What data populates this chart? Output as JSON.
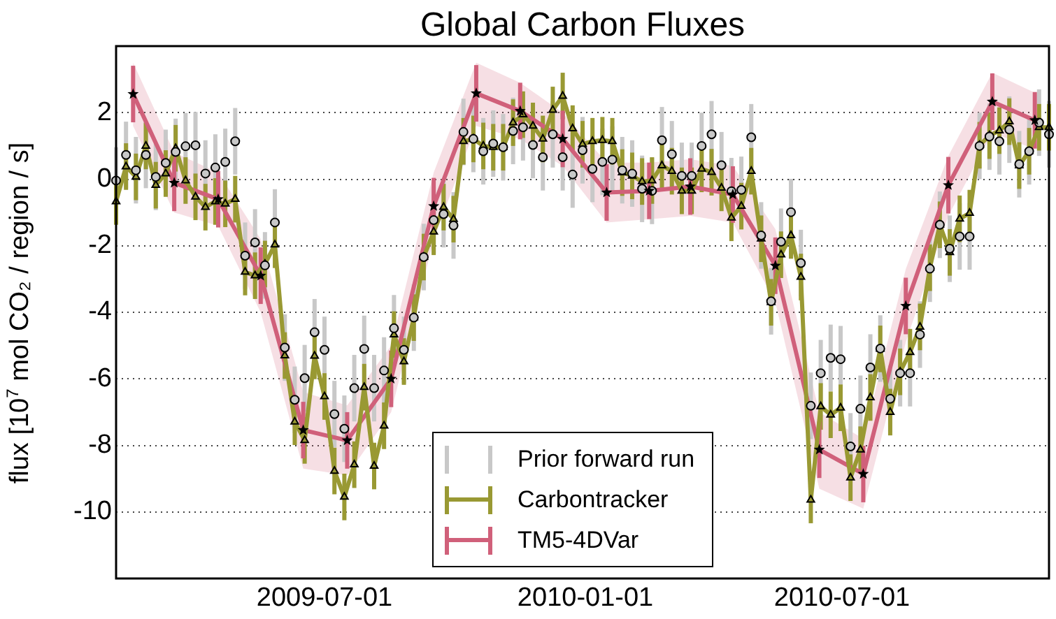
{
  "chart_data": {
    "type": "line",
    "title": "Global Carbon Fluxes",
    "ylabel": "flux [10$^{7}$ mol CO₂ / region / s]",
    "x": [
      "2009-02-04",
      "2009-02-11",
      "2009-02-18",
      "2009-02-25",
      "2009-03-04",
      "2009-03-11",
      "2009-03-18",
      "2009-03-25",
      "2009-04-01",
      "2009-04-08",
      "2009-04-15",
      "2009-04-22",
      "2009-04-29",
      "2009-05-06",
      "2009-05-13",
      "2009-05-20",
      "2009-05-27",
      "2009-06-03",
      "2009-06-10",
      "2009-06-17",
      "2009-06-24",
      "2009-07-01",
      "2009-07-08",
      "2009-07-15",
      "2009-07-22",
      "2009-07-29",
      "2009-08-05",
      "2009-08-12",
      "2009-08-19",
      "2009-08-26",
      "2009-09-02",
      "2009-09-09",
      "2009-09-16",
      "2009-09-23",
      "2009-09-30",
      "2009-10-07",
      "2009-10-14",
      "2009-10-21",
      "2009-10-28",
      "2009-11-04",
      "2009-11-11",
      "2009-11-18",
      "2009-11-25",
      "2009-12-02",
      "2009-12-09",
      "2009-12-16",
      "2009-12-23",
      "2009-12-30",
      "2010-01-06",
      "2010-01-13",
      "2010-01-20",
      "2010-01-27",
      "2010-02-03",
      "2010-02-10",
      "2010-02-17",
      "2010-02-24",
      "2010-03-03",
      "2010-03-10",
      "2010-03-17",
      "2010-03-24",
      "2010-03-31",
      "2010-04-07",
      "2010-04-14",
      "2010-04-21",
      "2010-04-28",
      "2010-05-05",
      "2010-05-12",
      "2010-05-19",
      "2010-05-26",
      "2010-06-02",
      "2010-06-09",
      "2010-06-16",
      "2010-06-23",
      "2010-06-30",
      "2010-07-07",
      "2010-07-14",
      "2010-07-21",
      "2010-07-28",
      "2010-08-04",
      "2010-08-11",
      "2010-08-18",
      "2010-08-25",
      "2010-09-01",
      "2010-09-08",
      "2010-09-15",
      "2010-09-22",
      "2010-09-29",
      "2010-10-06",
      "2010-10-13",
      "2010-10-20",
      "2010-10-27",
      "2010-11-03",
      "2010-11-10",
      "2010-11-17",
      "2010-11-24"
    ],
    "xlim": [
      "2009-02-04",
      "2010-11-24"
    ],
    "xticks": [
      "2009-07-01",
      "2010-01-01",
      "2010-07-01"
    ],
    "ylim": [
      -12,
      4
    ],
    "yticks": [
      -10,
      -8,
      -6,
      -4,
      -2,
      0,
      2
    ],
    "grid": "y",
    "legend": "bottom",
    "series": [
      {
        "name": "Prior forward run",
        "type": "scatter",
        "marker": "circle",
        "color": "#c8c8c8",
        "values": [
          -0.04,
          0.73,
          0.27,
          0.73,
          0.07,
          0.49,
          0.82,
          0.99,
          1.02,
          0.17,
          0.35,
          0.52,
          1.14,
          -2.3,
          -1.9,
          -2.59,
          -1.3,
          -5.06,
          -6.63,
          -5.98,
          -4.6,
          -5.13,
          -7.06,
          -7.5,
          -6.28,
          -5.1,
          -6.28,
          -5.75,
          -4.48,
          -5.13,
          -4.16,
          -2.34,
          -1.23,
          -1.05,
          -1.39,
          1.42,
          1.21,
          0.84,
          1.07,
          0.96,
          1.45,
          1.56,
          1.03,
          0.66,
          1.35,
          0.66,
          0.14,
          0.87,
          0.31,
          0.52,
          0.59,
          0.27,
          0.17,
          -0.29,
          -0.35,
          1.17,
          0.75,
          0.1,
          0.1,
          1.0,
          1.35,
          0.42,
          -0.36,
          -0.32,
          1.26,
          -1.69,
          -3.67,
          -1.88,
          -0.99,
          -2.52,
          -6.81,
          -5.83,
          -5.37,
          -5.41,
          -8.03,
          -6.9,
          -5.66,
          -5.09,
          -6.6,
          -5.83,
          -5.83,
          -4.67,
          -2.69,
          -1.37,
          -2.09,
          -1.72,
          -1.72,
          1.0,
          1.28,
          1.14,
          1.49,
          0.45,
          0.84,
          1.7,
          1.35
        ],
        "errors": [
          1,
          1,
          1,
          1,
          1,
          1,
          1,
          1,
          1,
          1,
          1,
          1,
          1,
          1,
          1,
          1,
          1,
          1,
          1,
          1,
          1,
          1,
          1,
          1,
          1,
          1,
          1,
          1,
          1,
          1,
          1,
          1,
          1,
          1,
          1,
          1,
          1,
          1,
          1,
          1,
          1,
          1,
          1,
          1,
          1,
          1,
          1,
          1,
          1,
          1,
          1,
          1,
          1,
          1,
          1,
          1,
          1,
          1,
          1,
          1,
          1,
          1,
          1,
          1,
          1,
          1,
          1,
          1,
          1,
          1,
          1,
          1,
          1,
          1,
          1,
          1,
          1,
          1,
          1,
          1,
          1,
          1,
          1,
          1,
          1,
          1,
          1,
          1,
          1,
          1,
          1,
          1,
          1,
          1,
          1
        ]
      },
      {
        "name": "Carbontracker",
        "marker": "triangle",
        "color": "#999933",
        "values": [
          -0.67,
          0.38,
          0.07,
          1.0,
          -0.18,
          0.17,
          0.93,
          -0.04,
          -0.53,
          -0.84,
          -0.67,
          -0.74,
          -0.6,
          -2.79,
          -2.9,
          -2.55,
          -1.97,
          -5.3,
          -7.29,
          -7.85,
          -5.31,
          -6.53,
          -8.77,
          -9.55,
          -8.58,
          -6.25,
          -8.62,
          -7.41,
          -4.67,
          -5.48,
          -4.16,
          -2.34,
          -1.58,
          -0.84,
          -1.2,
          1.14,
          1.21,
          1.0,
          0.96,
          0.96,
          1.7,
          1.94,
          1.6,
          1.21,
          2.08,
          2.5,
          1.52,
          1.05,
          1.14,
          1.17,
          1.14,
          0.2,
          0.1,
          -0.07,
          -0.04,
          0.41,
          0.24,
          -0.35,
          -0.35,
          0.31,
          0.21,
          -0.26,
          -1.16,
          -0.81,
          0.24,
          -1.79,
          -3.7,
          -2.27,
          -1.69,
          -2.94,
          -9.64,
          -6.83,
          -7.08,
          -6.87,
          -8.97,
          -8.13,
          -6.56,
          -5.1,
          -7.0,
          -5.79,
          -5.2,
          -4.44,
          -2.66,
          -1.37,
          -2.2,
          -1.19,
          -1.02,
          1.02,
          1.31,
          1.46,
          1.73,
          0.41,
          0.84,
          1.56,
          1.56
        ],
        "errors": [
          0.7,
          0.7,
          0.7,
          0.7,
          0.7,
          0.7,
          0.7,
          0.7,
          0.7,
          0.7,
          0.7,
          0.7,
          0.7,
          0.7,
          0.7,
          0.7,
          0.7,
          0.7,
          0.7,
          0.7,
          0.7,
          0.7,
          0.7,
          0.7,
          0.7,
          0.7,
          0.7,
          0.7,
          0.7,
          0.7,
          0.7,
          0.7,
          0.7,
          0.7,
          0.7,
          0.7,
          0.7,
          0.7,
          0.7,
          0.7,
          0.7,
          0.7,
          0.7,
          0.7,
          0.7,
          0.7,
          0.7,
          0.7,
          0.7,
          0.7,
          0.7,
          0.7,
          0.7,
          0.7,
          0.7,
          0.7,
          0.7,
          0.7,
          0.7,
          0.7,
          0.7,
          0.7,
          0.7,
          0.7,
          0.7,
          0.7,
          0.7,
          0.7,
          0.7,
          0.7,
          0.7,
          0.7,
          0.7,
          0.7,
          0.7,
          0.7,
          0.7,
          0.7,
          0.7,
          0.7,
          0.7,
          0.7,
          0.7,
          0.7,
          0.7,
          0.7,
          0.7,
          0.7,
          0.7,
          0.7,
          0.7,
          0.7,
          0.7,
          0.7,
          0.7
        ]
      },
      {
        "name": "TM5-4DVar",
        "marker": "star",
        "color": "#d0607a",
        "x": [
          "2009-02-16",
          "2009-03-17",
          "2009-04-17",
          "2009-05-17",
          "2009-06-16",
          "2009-07-17",
          "2009-08-17",
          "2009-09-16",
          "2009-10-16",
          "2009-11-16",
          "2009-12-16",
          "2010-01-16",
          "2010-02-15",
          "2010-03-16",
          "2010-04-15",
          "2010-05-15",
          "2010-06-15",
          "2010-07-16",
          "2010-08-15",
          "2010-09-14",
          "2010-10-15",
          "2010-11-14"
        ],
        "values": [
          2.56,
          -0.11,
          -0.6,
          -2.9,
          -7.54,
          -7.85,
          -6.0,
          -0.81,
          2.58,
          2.05,
          1.21,
          -0.4,
          -0.35,
          -0.22,
          -0.46,
          -2.6,
          -8.13,
          -8.86,
          -3.81,
          -0.18,
          2.33,
          1.77
        ],
        "errors": [
          0.85,
          0.85,
          0.85,
          0.85,
          0.85,
          0.85,
          0.85,
          0.85,
          0.85,
          0.85,
          0.85,
          0.85,
          0.85,
          0.85,
          0.85,
          0.85,
          0.85,
          0.85,
          0.85,
          0.85,
          0.85,
          0.85
        ],
        "lower": [
          1.6,
          -1.0,
          -1.4,
          -4.0,
          -8.7,
          -8.9,
          -7.0,
          -1.8,
          1.6,
          1.2,
          0.4,
          -1.3,
          -1.2,
          -1.1,
          -1.3,
          -3.7,
          -9.3,
          -9.9,
          -4.9,
          -1.1,
          1.4,
          0.9
        ],
        "upper": [
          3.5,
          0.8,
          0.2,
          -1.8,
          -6.4,
          -6.8,
          -5.0,
          0.2,
          3.5,
          2.9,
          2.0,
          0.5,
          0.5,
          0.6,
          0.4,
          -1.5,
          -7.0,
          -7.8,
          -2.7,
          0.7,
          3.2,
          2.6
        ]
      }
    ]
  }
}
